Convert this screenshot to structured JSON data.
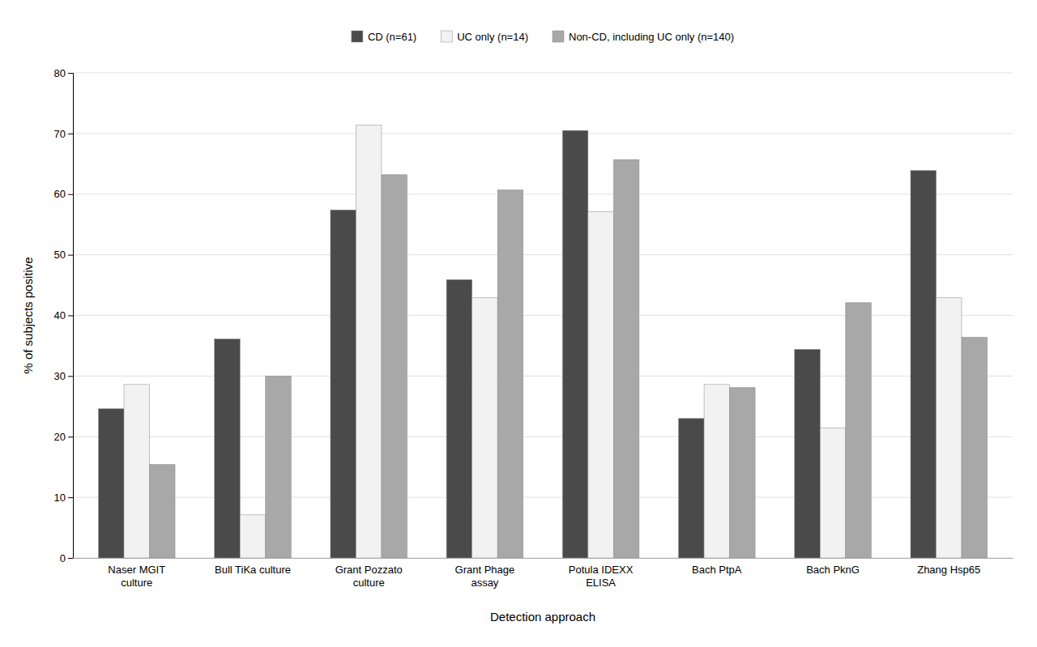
{
  "chart_data": {
    "type": "bar",
    "x_label": "Detection approach",
    "y_label": "% of subjects positive",
    "categories": [
      "Naser MGIT\nculture",
      "Bull TiKa culture",
      "Grant Pozzato\nculture",
      "Grant Phage\nassay",
      "Potula IDEXX\nELISA",
      "Bach PtpA",
      "Bach PknG",
      "Zhang Hsp65"
    ],
    "series": [
      {
        "name": "CD (n=61)",
        "color": "#4a4a4a",
        "values": [
          24.6,
          36.1,
          57.4,
          45.9,
          70.5,
          23.0,
          34.4,
          63.9
        ]
      },
      {
        "name": "UC only (n=14)",
        "color": "#f2f2f2",
        "values": [
          28.6,
          7.1,
          71.4,
          42.9,
          57.1,
          28.6,
          21.4,
          42.9
        ]
      },
      {
        "name": "Non-CD, including UC only (n=140)",
        "color": "#a8a8a8",
        "values": [
          15.4,
          30.0,
          63.2,
          60.7,
          65.7,
          28.1,
          42.1,
          36.4
        ]
      }
    ],
    "ylim": [
      0,
      80
    ],
    "yticks": [
      0,
      10,
      20,
      30,
      40,
      50,
      60,
      70,
      80
    ],
    "grid": true,
    "legend": "top"
  }
}
